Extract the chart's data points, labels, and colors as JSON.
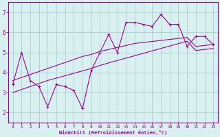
{
  "title": "",
  "xlabel": "Windchill (Refroidissement éolien,°C)",
  "bg_color": "#d8f0f0",
  "grid_color": "#b0cece",
  "line_color": "#990099",
  "spine_color": "#990099",
  "xlim": [
    -0.5,
    23.5
  ],
  "ylim": [
    1.5,
    7.5
  ],
  "xticks": [
    0,
    1,
    2,
    3,
    4,
    5,
    6,
    7,
    8,
    9,
    10,
    11,
    12,
    13,
    14,
    15,
    16,
    17,
    18,
    19,
    20,
    21,
    22,
    23
  ],
  "yticks": [
    2,
    3,
    4,
    5,
    6,
    7
  ],
  "series1_x": [
    0,
    1,
    2,
    3,
    4,
    5,
    6,
    7,
    8,
    9,
    10,
    11,
    12,
    13,
    14,
    15,
    16,
    17,
    18,
    19,
    20,
    21,
    22,
    23
  ],
  "series1_y": [
    3.4,
    5.0,
    3.6,
    3.3,
    2.3,
    3.4,
    3.3,
    3.1,
    2.2,
    4.1,
    5.0,
    5.9,
    5.0,
    6.5,
    6.5,
    6.4,
    6.3,
    6.9,
    6.4,
    6.4,
    5.3,
    5.8,
    5.8,
    5.4
  ],
  "series2_x": [
    0,
    1,
    2,
    3,
    4,
    5,
    6,
    7,
    8,
    9,
    10,
    11,
    12,
    13,
    14,
    15,
    16,
    17,
    18,
    19,
    20,
    21,
    22,
    23
  ],
  "series2_y": [
    3.6,
    3.75,
    3.9,
    4.05,
    4.2,
    4.35,
    4.5,
    4.65,
    4.8,
    4.9,
    5.05,
    5.15,
    5.25,
    5.35,
    5.45,
    5.5,
    5.55,
    5.6,
    5.65,
    5.7,
    5.75,
    5.3,
    5.35,
    5.4
  ],
  "series3_x": [
    0,
    1,
    2,
    3,
    4,
    5,
    6,
    7,
    8,
    9,
    10,
    11,
    12,
    13,
    14,
    15,
    16,
    17,
    18,
    19,
    20,
    21,
    22,
    23
  ],
  "series3_y": [
    3.0,
    3.15,
    3.3,
    3.45,
    3.6,
    3.72,
    3.84,
    3.96,
    4.08,
    4.2,
    4.35,
    4.48,
    4.6,
    4.72,
    4.84,
    4.96,
    5.08,
    5.2,
    5.32,
    5.44,
    5.56,
    5.1,
    5.15,
    5.2
  ]
}
